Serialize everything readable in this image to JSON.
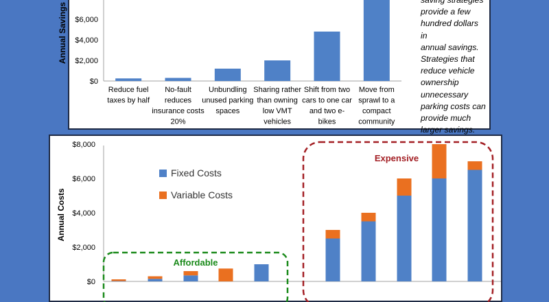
{
  "colors": {
    "background": "#4a77c2",
    "fixed": "#4f81c7",
    "variable": "#ea7020",
    "bar": "#4f81c7",
    "affordable": "#1a8a1a",
    "expensive": "#a31f24"
  },
  "chart_data": [
    {
      "type": "bar",
      "title": "",
      "xlabel": "",
      "ylabel": "Annual Savings",
      "ylim": [
        0,
        8000
      ],
      "visible_ticks": [
        "$0",
        "$2,000",
        "$4,000",
        "$6,000"
      ],
      "categories": [
        [
          "Reduce fuel",
          "taxes by half"
        ],
        [
          "No-fault",
          "reduces",
          "insurance costs",
          "20%"
        ],
        [
          "Unbundling",
          "unused parking",
          "spaces"
        ],
        [
          "Sharing rather",
          "than owning",
          "low VMT",
          "vehicles"
        ],
        [
          "Shift from two",
          "cars to one car",
          "and two e-",
          "bikes"
        ],
        [
          "Move from",
          "sprawl to a",
          "compact",
          "community"
        ]
      ],
      "values": [
        250,
        300,
        1200,
        2000,
        4800,
        8000
      ],
      "note": [
        "saving strategies",
        "provide a few",
        "hundred dollars in",
        "annual savings.",
        "Strategies that",
        "reduce vehicle",
        "ownership",
        "unnecessary",
        "parking costs can",
        "provide much",
        "larger savings."
      ]
    },
    {
      "type": "bar",
      "stacked": true,
      "ylabel": "Annual Costs",
      "ylim": [
        0,
        8000
      ],
      "ticks": [
        "$0",
        "$2,000",
        "$4,000",
        "$6,000",
        "$8,000"
      ],
      "legend": {
        "placement": "top-left",
        "entries": [
          "Fixed Costs",
          "Variable Costs"
        ]
      },
      "series": [
        {
          "name": "Fixed Costs",
          "values": [
            20,
            150,
            350,
            0,
            1000,
            2500,
            3500,
            5000,
            6000,
            6500
          ]
        },
        {
          "name": "Variable Costs",
          "values": [
            100,
            150,
            250,
            750,
            0,
            500,
            500,
            1000,
            2000,
            500
          ]
        }
      ],
      "groups": [
        {
          "label": "Affordable",
          "bars": [
            0,
            1,
            2,
            3,
            4
          ]
        },
        {
          "label": "Expensive",
          "bars": [
            5,
            6,
            7,
            8,
            9
          ]
        }
      ]
    }
  ]
}
